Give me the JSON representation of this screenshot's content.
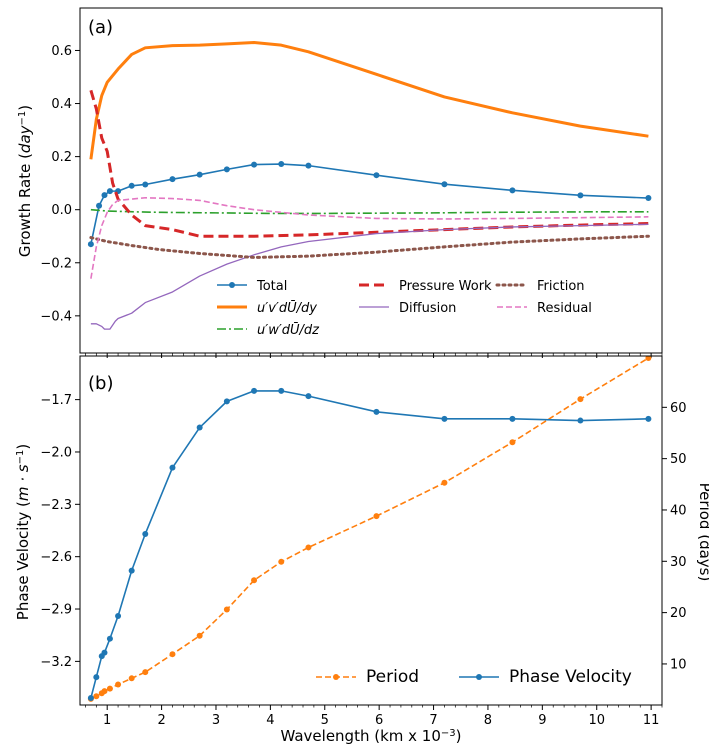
{
  "chart_data": [
    {
      "type": "line",
      "panel_label": "(a)",
      "ylabel": "Growth Rate (day⁻¹)",
      "xlim": [
        0.5,
        11.2
      ],
      "ylim": [
        -0.54,
        0.76
      ],
      "xticks": [
        1,
        2,
        3,
        4,
        5,
        6,
        7,
        8,
        9,
        10,
        11
      ],
      "yticks": [
        -0.4,
        -0.2,
        0.0,
        0.2,
        0.4,
        0.6
      ],
      "ytick_labels": [
        "−0.4",
        "−0.2",
        "0.0",
        "0.2",
        "0.4",
        "0.6"
      ],
      "legend": "lower-right, 3 columns",
      "series": [
        {
          "name": "Total",
          "color": "#1f77b4",
          "style": "solid-marker",
          "x": [
            0.7,
            0.85,
            0.95,
            1.05,
            1.2,
            1.45,
            1.7,
            2.2,
            2.7,
            3.2,
            3.7,
            4.2,
            4.7,
            5.95,
            7.2,
            8.45,
            9.7,
            10.95
          ],
          "y": [
            -0.13,
            0.015,
            0.055,
            0.07,
            0.07,
            0.09,
            0.095,
            0.115,
            0.132,
            0.152,
            0.17,
            0.172,
            0.166,
            0.13,
            0.096,
            0.073,
            0.054,
            0.044
          ]
        },
        {
          "name": "u′v′dŪ/dy",
          "color": "#ff7f0e",
          "style": "solid-thick",
          "x": [
            0.7,
            0.8,
            0.9,
            1.0,
            1.2,
            1.45,
            1.7,
            2.2,
            2.7,
            3.2,
            3.7,
            4.2,
            4.7,
            5.95,
            7.2,
            8.45,
            9.7,
            10.95
          ],
          "y": [
            0.19,
            0.34,
            0.43,
            0.48,
            0.53,
            0.585,
            0.61,
            0.618,
            0.62,
            0.625,
            0.63,
            0.62,
            0.595,
            0.51,
            0.425,
            0.365,
            0.315,
            0.277
          ]
        },
        {
          "name": "u′w′dŪ/dz",
          "color": "#2ca02c",
          "style": "dashdot",
          "x": [
            0.7,
            1.0,
            1.5,
            2.0,
            3.0,
            4.0,
            5.0,
            6.0,
            7.0,
            8.0,
            9.0,
            10.0,
            10.95
          ],
          "y": [
            0.0,
            -0.005,
            -0.008,
            -0.01,
            -0.012,
            -0.014,
            -0.014,
            -0.013,
            -0.012,
            -0.01,
            -0.009,
            -0.008,
            -0.008
          ]
        },
        {
          "name": "Pressure Work",
          "color": "#d62728",
          "style": "dashed-thick",
          "x": [
            0.7,
            0.8,
            0.9,
            1.0,
            1.1,
            1.2,
            1.45,
            1.7,
            2.2,
            2.7,
            3.7,
            4.7,
            5.95,
            7.2,
            8.45,
            9.7,
            10.95
          ],
          "y": [
            0.45,
            0.38,
            0.27,
            0.22,
            0.1,
            0.04,
            -0.02,
            -0.06,
            -0.075,
            -0.1,
            -0.1,
            -0.095,
            -0.085,
            -0.075,
            -0.065,
            -0.058,
            -0.052
          ]
        },
        {
          "name": "Diffusion",
          "color": "#9467bd",
          "style": "solid-thin",
          "x": [
            0.7,
            0.8,
            0.9,
            0.95,
            1.05,
            1.15,
            1.2,
            1.45,
            1.7,
            2.2,
            2.7,
            3.2,
            3.7,
            4.2,
            4.7,
            5.95,
            7.2,
            8.45,
            9.7,
            10.95
          ],
          "y": [
            -0.43,
            -0.43,
            -0.44,
            -0.45,
            -0.45,
            -0.42,
            -0.41,
            -0.39,
            -0.35,
            -0.31,
            -0.25,
            -0.205,
            -0.17,
            -0.14,
            -0.12,
            -0.09,
            -0.075,
            -0.065,
            -0.06,
            -0.055
          ]
        },
        {
          "name": "Friction",
          "color": "#8c564b",
          "style": "dotted-thick",
          "x": [
            0.7,
            1.0,
            1.45,
            1.95,
            2.7,
            3.7,
            4.7,
            5.95,
            7.2,
            8.45,
            9.7,
            10.95
          ],
          "y": [
            -0.105,
            -0.12,
            -0.135,
            -0.15,
            -0.165,
            -0.18,
            -0.175,
            -0.16,
            -0.14,
            -0.122,
            -0.11,
            -0.1
          ]
        },
        {
          "name": "Residual",
          "color": "#e377c2",
          "style": "dashed-thin",
          "x": [
            0.7,
            0.8,
            0.9,
            1.0,
            1.1,
            1.2,
            1.45,
            1.7,
            2.2,
            2.7,
            3.2,
            3.7,
            4.7,
            5.95,
            7.2,
            8.45,
            9.7,
            10.95
          ],
          "y": [
            -0.26,
            -0.14,
            -0.06,
            -0.01,
            0.02,
            0.035,
            0.04,
            0.045,
            0.042,
            0.035,
            0.015,
            0.0,
            -0.02,
            -0.033,
            -0.035,
            -0.033,
            -0.03,
            -0.027
          ]
        }
      ]
    },
    {
      "type": "line",
      "panel_label": "(b)",
      "xlabel": "Wavelength (km x 10⁻³)",
      "ylabel": "Phase Velocity (m·s⁻¹)",
      "ylabel_right": "Period (days)",
      "xlim": [
        0.5,
        11.2
      ],
      "ylim": [
        -3.45,
        -1.45
      ],
      "ylim_right": [
        2,
        70
      ],
      "xticks": [
        1,
        2,
        3,
        4,
        5,
        6,
        7,
        8,
        9,
        10,
        11
      ],
      "yticks": [
        -3.2,
        -2.9,
        -2.6,
        -2.3,
        -2.0,
        -1.7
      ],
      "ytick_labels": [
        "−3.2",
        "−2.9",
        "−2.6",
        "−2.3",
        "−2.0",
        "−1.7"
      ],
      "yticks_right": [
        10,
        20,
        30,
        40,
        50,
        60
      ],
      "legend": "lower-right, 2 columns",
      "series": [
        {
          "name": "Period",
          "axis": "right",
          "color": "#ff7f0e",
          "style": "dashed-marker",
          "x": [
            0.7,
            0.8,
            0.9,
            0.95,
            1.05,
            1.2,
            1.45,
            1.7,
            2.2,
            2.7,
            3.2,
            3.7,
            4.2,
            4.7,
            5.95,
            7.2,
            8.45,
            9.7,
            10.95
          ],
          "y": [
            3.2,
            3.7,
            4.3,
            4.7,
            5.2,
            6.0,
            7.2,
            8.4,
            11.9,
            15.5,
            20.6,
            26.3,
            29.9,
            32.7,
            38.8,
            45.3,
            53.2,
            61.6,
            69.6
          ]
        },
        {
          "name": "Phase Velocity",
          "axis": "left",
          "color": "#1f77b4",
          "style": "solid-marker",
          "x": [
            0.7,
            0.8,
            0.9,
            0.95,
            1.05,
            1.2,
            1.45,
            1.7,
            2.2,
            2.7,
            3.2,
            3.7,
            4.2,
            4.7,
            5.95,
            7.2,
            8.45,
            9.7,
            10.95
          ],
          "y": [
            -3.41,
            -3.29,
            -3.17,
            -3.15,
            -3.07,
            -2.94,
            -2.68,
            -2.47,
            -2.09,
            -1.86,
            -1.71,
            -1.65,
            -1.65,
            -1.68,
            -1.77,
            -1.81,
            -1.81,
            -1.82,
            -1.81
          ]
        }
      ]
    }
  ]
}
